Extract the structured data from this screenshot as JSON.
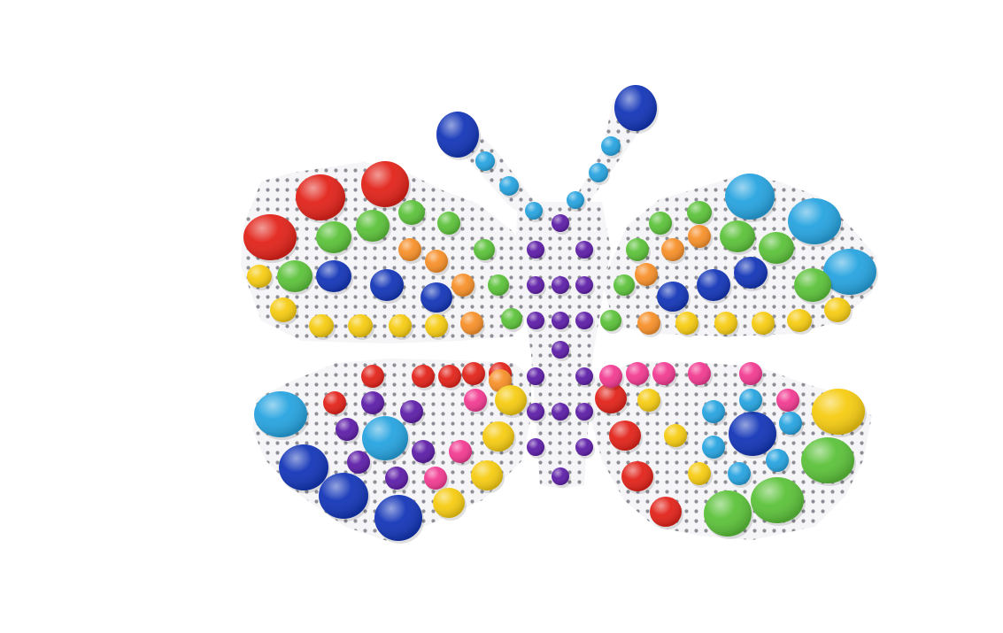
{
  "image": {
    "subject": "pegboard-butterfly-mosaic",
    "background_color": "#ffffff",
    "board_color": "#f5f5f7",
    "hole_color": "#8e8e96"
  },
  "palette": {
    "red": "#e2231a",
    "blue": "#1436b8",
    "cyan": "#27a4e0",
    "green": "#5cc23a",
    "yellow": "#f6cc12",
    "orange": "#f7902a",
    "purple": "#5e1ea8",
    "pink": "#f23b92"
  }
}
